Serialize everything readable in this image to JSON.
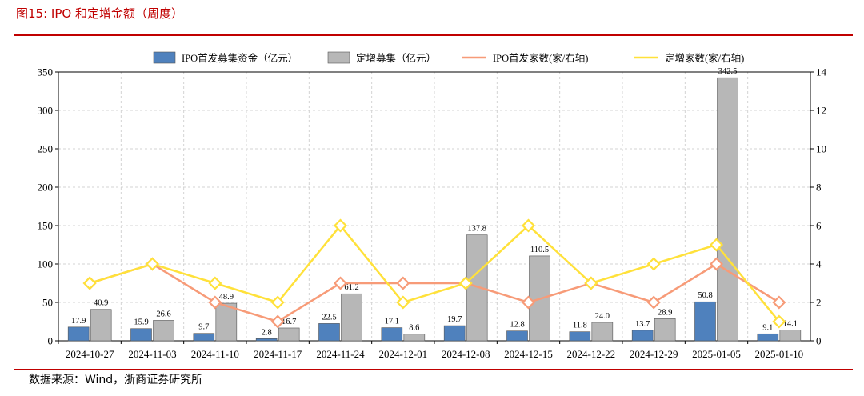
{
  "figure": {
    "title": "图15:  IPO 和定增金额（周度）",
    "source": "数据来源：Wind，浙商证券研究所"
  },
  "colors": {
    "accent": "#c00000",
    "ipo_bar": "#4f81bd",
    "private_bar": "#b7b7b7",
    "ipo_line": "#f79b78",
    "private_line": "#ffe13a"
  },
  "chart_data": {
    "type": "bar",
    "title": "",
    "categories": [
      "2024-10-27",
      "2024-11-03",
      "2024-11-10",
      "2024-11-17",
      "2024-11-24",
      "2024-12-01",
      "2024-12-08",
      "2024-12-15",
      "2024-12-22",
      "2024-12-29",
      "2025-01-05",
      "2025-01-10"
    ],
    "ylim": [
      0,
      350
    ],
    "y_ticks": [
      0,
      50,
      100,
      150,
      200,
      250,
      300,
      350
    ],
    "y2lim": [
      0,
      14
    ],
    "y2_ticks": [
      0,
      2,
      4,
      6,
      8,
      10,
      12,
      14
    ],
    "grid": true,
    "legend_position": "top",
    "series": [
      {
        "name": "IPO首发募集资金（亿元）",
        "type": "bar",
        "axis": "left",
        "color": "#4f81bd",
        "values": [
          17.9,
          15.9,
          9.7,
          2.8,
          22.5,
          17.1,
          19.7,
          12.8,
          11.8,
          13.7,
          50.8,
          9.1
        ],
        "labels": [
          "17.9",
          "15.9",
          "9.7",
          "2.8",
          "22.5",
          "17.1",
          "19.7",
          "12.8",
          "11.8",
          "13.7",
          "50.8",
          "9.1"
        ]
      },
      {
        "name": "定增募集（亿元）",
        "type": "bar",
        "axis": "left",
        "color": "#b7b7b7",
        "values": [
          40.9,
          26.6,
          48.9,
          16.7,
          61.2,
          8.6,
          137.8,
          110.5,
          24.0,
          28.9,
          342.5,
          14.1
        ],
        "labels": [
          "40.9",
          "26.6",
          "48.9",
          "16.7",
          "61.2",
          "8.6",
          "137.8",
          "110.5",
          "24.0",
          "28.9",
          "342.5",
          "14.1"
        ]
      },
      {
        "name": "IPO首发家数(家/右轴)",
        "type": "line",
        "axis": "right",
        "color": "#f79b78",
        "values": [
          3,
          4,
          2,
          1,
          3,
          3,
          3,
          2,
          3,
          2,
          4,
          2
        ]
      },
      {
        "name": "定增家数(家/右轴)",
        "type": "line",
        "axis": "right",
        "color": "#ffe13a",
        "values": [
          3,
          4,
          3,
          2,
          6,
          2,
          3,
          6,
          3,
          4,
          5,
          1
        ]
      }
    ]
  }
}
